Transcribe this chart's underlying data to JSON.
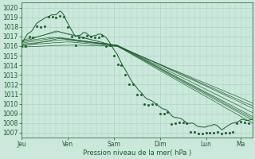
{
  "xlabel": "Pression niveau de la mer( hPa )",
  "bg_color": "#cce8dc",
  "grid_color": "#aad4c4",
  "line_color": "#1a5c28",
  "ylim": [
    1006.5,
    1020.5
  ],
  "yticks": [
    1007,
    1008,
    1009,
    1010,
    1011,
    1012,
    1013,
    1014,
    1015,
    1016,
    1017,
    1018,
    1019,
    1020
  ],
  "day_labels": [
    "Jeu",
    "Ven",
    "Sam",
    "Dim",
    "Lun",
    "Ma"
  ],
  "day_positions": [
    0,
    24,
    48,
    72,
    96,
    114
  ],
  "xlim": [
    0,
    120
  ]
}
